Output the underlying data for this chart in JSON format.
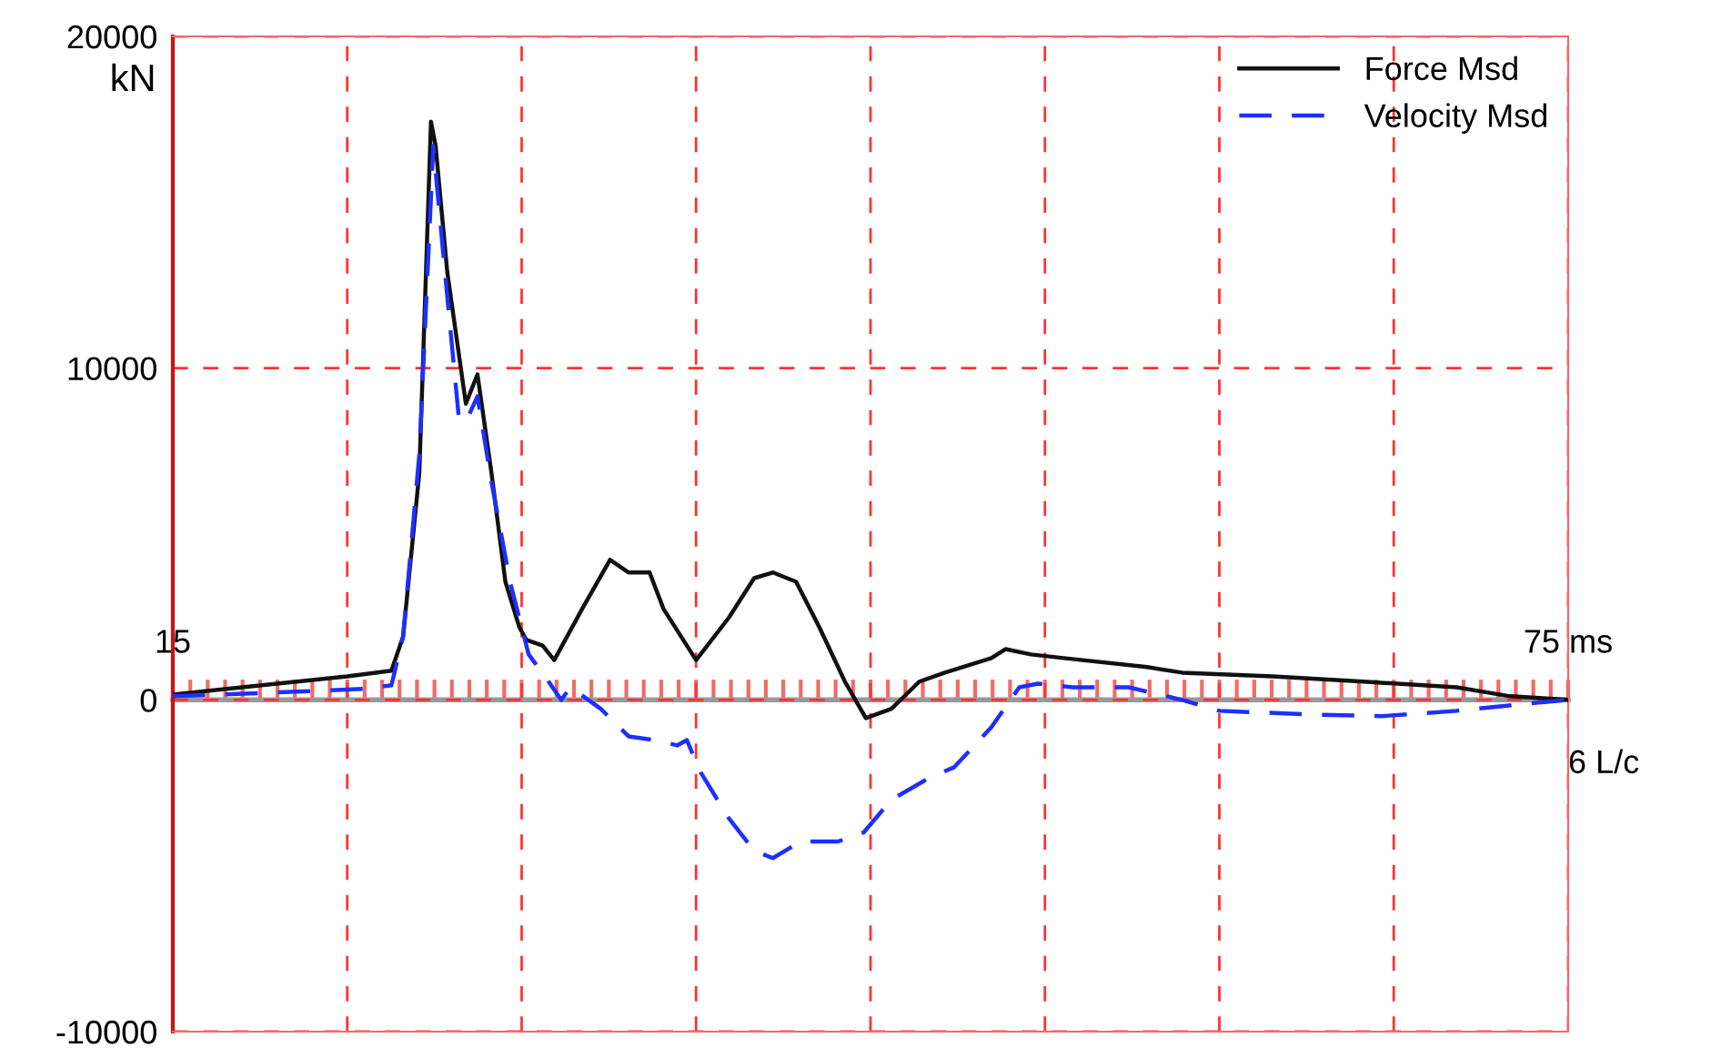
{
  "chart_data": {
    "type": "line",
    "ylabel": "kN",
    "xlim": [
      15,
      75
    ],
    "xticks": [
      {
        "value": 15,
        "label": "15"
      },
      {
        "value": 22.5,
        "label": null
      },
      {
        "value": 30,
        "label": null
      },
      {
        "value": 37.5,
        "label": null
      },
      {
        "value": 45,
        "label": null
      },
      {
        "value": 52.5,
        "label": null
      },
      {
        "value": 60,
        "label": null
      },
      {
        "value": 67.5,
        "label": null
      },
      {
        "value": 75,
        "label": "75 ms"
      }
    ],
    "ylim": [
      -10000,
      20000
    ],
    "yticks": [
      -10000,
      0,
      10000,
      20000
    ],
    "grid": true,
    "legend": "top right",
    "annotations": [
      "6 L/c"
    ],
    "series": [
      {
        "name": "Force Msd",
        "color": "#111111",
        "line_style": "solid",
        "x": [
          15.0,
          22.5,
          24.4,
          24.9,
          25.6,
          26.1,
          26.3,
          26.8,
          27.6,
          28.1,
          28.7,
          29.3,
          29.9,
          30.2,
          30.9,
          31.4,
          32.6,
          33.8,
          34.6,
          35.5,
          36.1,
          37.5,
          38.9,
          40.0,
          40.8,
          41.8,
          42.8,
          43.9,
          44.8,
          45.9,
          47.1,
          48.2,
          50.2,
          50.8,
          51.9,
          53.3,
          56.9,
          58.4,
          62.3,
          66.2,
          70.2,
          72.5,
          75.0
        ],
        "values": [
          160,
          710,
          880,
          1900,
          6850,
          17430,
          16700,
          12900,
          8930,
          9810,
          6850,
          3560,
          2190,
          1810,
          1640,
          1200,
          2740,
          4220,
          3840,
          3840,
          2740,
          1200,
          2470,
          3670,
          3840,
          3560,
          2190,
          550,
          -550,
          -270,
          550,
          820,
          1260,
          1530,
          1370,
          1260,
          990,
          820,
          710,
          550,
          380,
          110,
          0
        ]
      },
      {
        "name": "Velocity Msd",
        "color": "#1f2fff",
        "line_style": "dashed",
        "x": [
          15.0,
          19.3,
          23.2,
          24.4,
          24.9,
          25.6,
          26.2,
          26.7,
          27.3,
          27.6,
          28.1,
          28.7,
          29.5,
          30.3,
          31.0,
          31.7,
          32.1,
          33.4,
          34.6,
          35.7,
          36.7,
          37.1,
          37.7,
          38.9,
          40.0,
          40.8,
          42.0,
          43.6,
          44.7,
          45.9,
          47.5,
          48.6,
          50.2,
          51.4,
          52.2,
          53.7,
          56.1,
          58.4,
          60.0,
          63.9,
          67.0,
          70.2,
          73.3,
          75.0
        ],
        "values": [
          110,
          220,
          330,
          440,
          1900,
          7400,
          16700,
          12900,
          8490,
          8380,
          9150,
          6580,
          3560,
          1370,
          710,
          0,
          380,
          -270,
          -1100,
          -1210,
          -1370,
          -1210,
          -2190,
          -3560,
          -4550,
          -4770,
          -4270,
          -4270,
          -4000,
          -3010,
          -2360,
          -2030,
          -820,
          380,
          490,
          380,
          380,
          0,
          -330,
          -440,
          -490,
          -330,
          -110,
          0
        ]
      }
    ]
  }
}
